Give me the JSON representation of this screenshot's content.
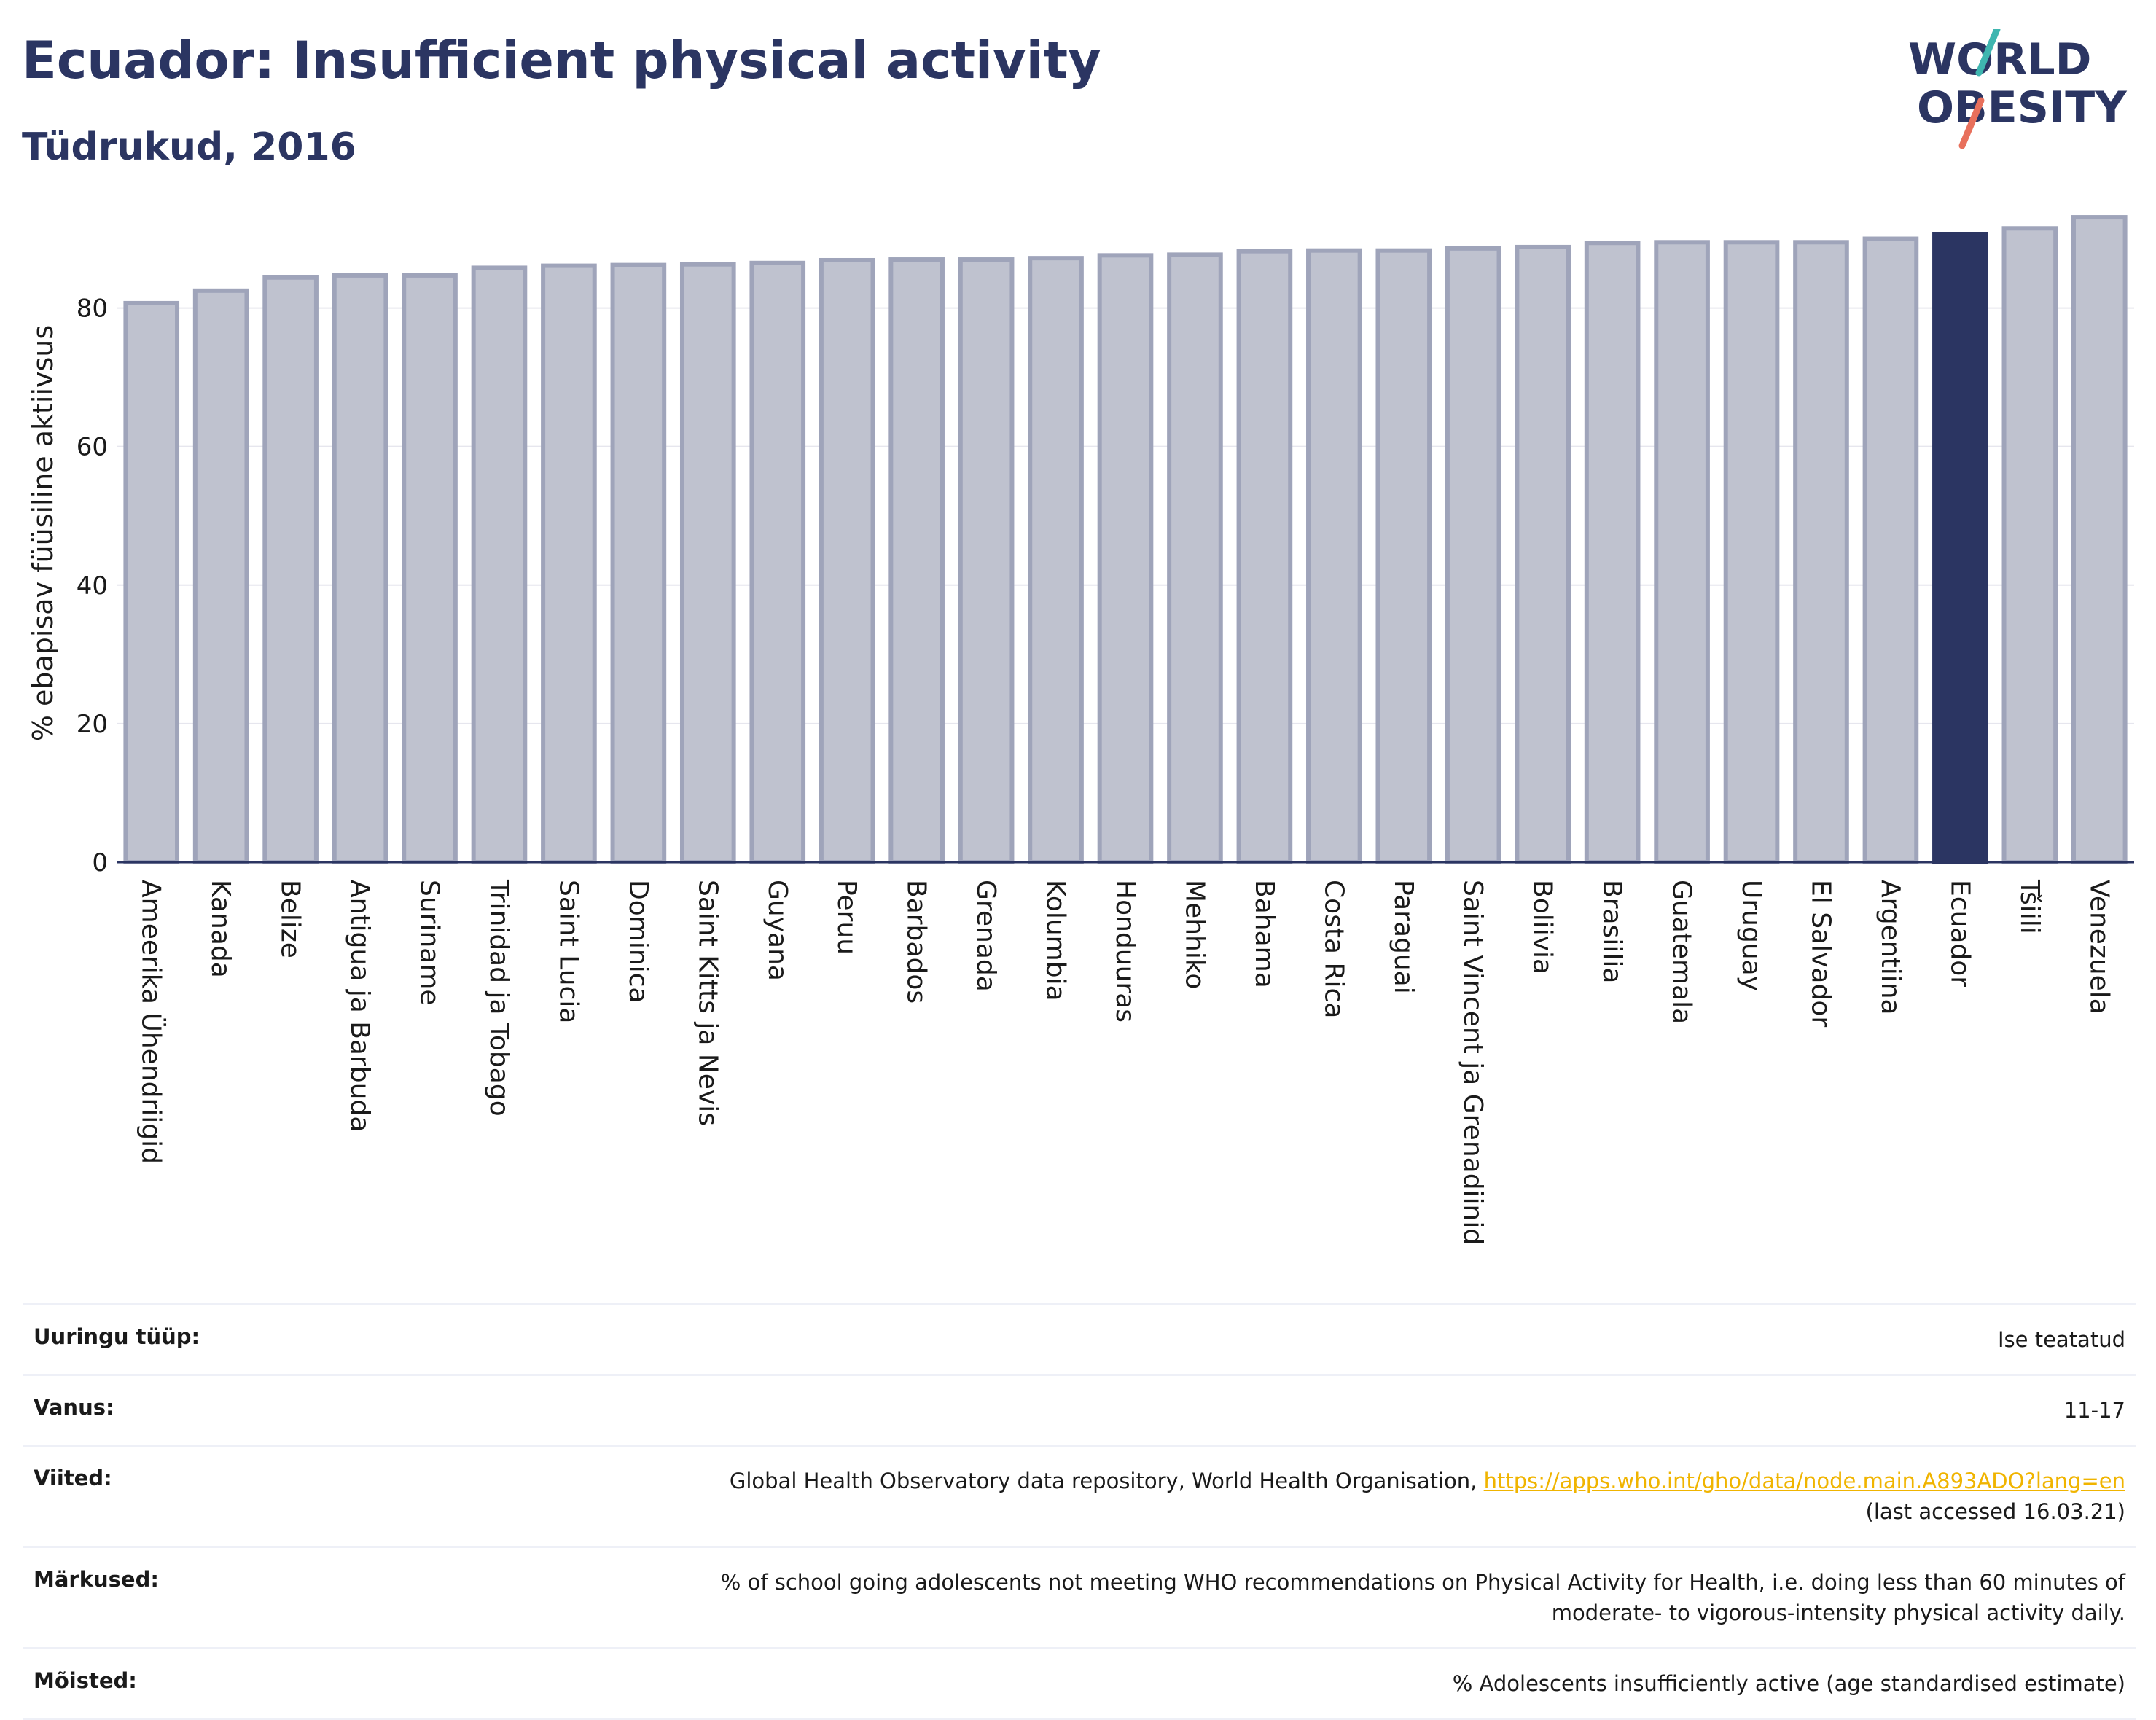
{
  "header": {
    "title": "Ecuador: Insufficient physical activity",
    "subtitle": "Tüdrukud, 2016"
  },
  "logo": {
    "line1": "WORLD",
    "line2": "OBESITY"
  },
  "colors": {
    "bar": "#bfc2cf",
    "bar_border": "#9fa4ba",
    "highlight": "#2b3562",
    "grid": "#e6e6ee",
    "link": "#f0b400"
  },
  "chart_data": {
    "type": "bar",
    "ylabel": "% ebapisav füüsiline aktiivsus",
    "ylim": [
      0,
      95
    ],
    "yticks": [
      0,
      20,
      40,
      60,
      80
    ],
    "grid": true,
    "highlight": "Ecuador",
    "categories": [
      "Ameerika Ühendriigid",
      "Kanada",
      "Belize",
      "Antigua ja Barbuda",
      "Suriname",
      "Trinidad ja Tobago",
      "Saint Lucia",
      "Dominica",
      "Saint Kitts ja Nevis",
      "Guyana",
      "Peruu",
      "Barbados",
      "Grenada",
      "Kolumbia",
      "Honduuras",
      "Mehhiko",
      "Bahama",
      "Costa Rica",
      "Paraguai",
      "Saint Vincent ja Grenadiinid",
      "Boliivia",
      "Brasiilia",
      "Guatemala",
      "Uruguay",
      "El Salvador",
      "Argentiina",
      "Ecuador",
      "Tšiili",
      "Venezuela"
    ],
    "values": [
      80.7,
      82.5,
      84.4,
      84.7,
      84.7,
      85.8,
      86.1,
      86.2,
      86.3,
      86.5,
      86.9,
      87.0,
      87.0,
      87.2,
      87.6,
      87.7,
      88.2,
      88.3,
      88.3,
      88.6,
      88.8,
      89.4,
      89.5,
      89.5,
      89.5,
      90.0,
      90.6,
      91.5,
      93.1
    ]
  },
  "info": {
    "rows": [
      {
        "label": "Uuringu tüüp:",
        "value": "Ise teatatud"
      },
      {
        "label": "Vanus:",
        "value": "11-17"
      },
      {
        "label": "Viited:",
        "value": "Global Health Observatory data repository, World Health Organisation, ",
        "link": "https://apps.who.int/gho/data/node.main.A893ADO?lang=en",
        "value2": "(last accessed 16.03.21)"
      },
      {
        "label": "Märkused:",
        "value": "% of school going adolescents not meeting WHO recommendations on Physical Activity for Health, i.e. doing less than 60 minutes of",
        "value2": "moderate- to vigorous-intensity physical activity daily."
      },
      {
        "label": "Mõisted:",
        "value": "% Adolescents insufficiently active (age standardised estimate)"
      }
    ]
  }
}
